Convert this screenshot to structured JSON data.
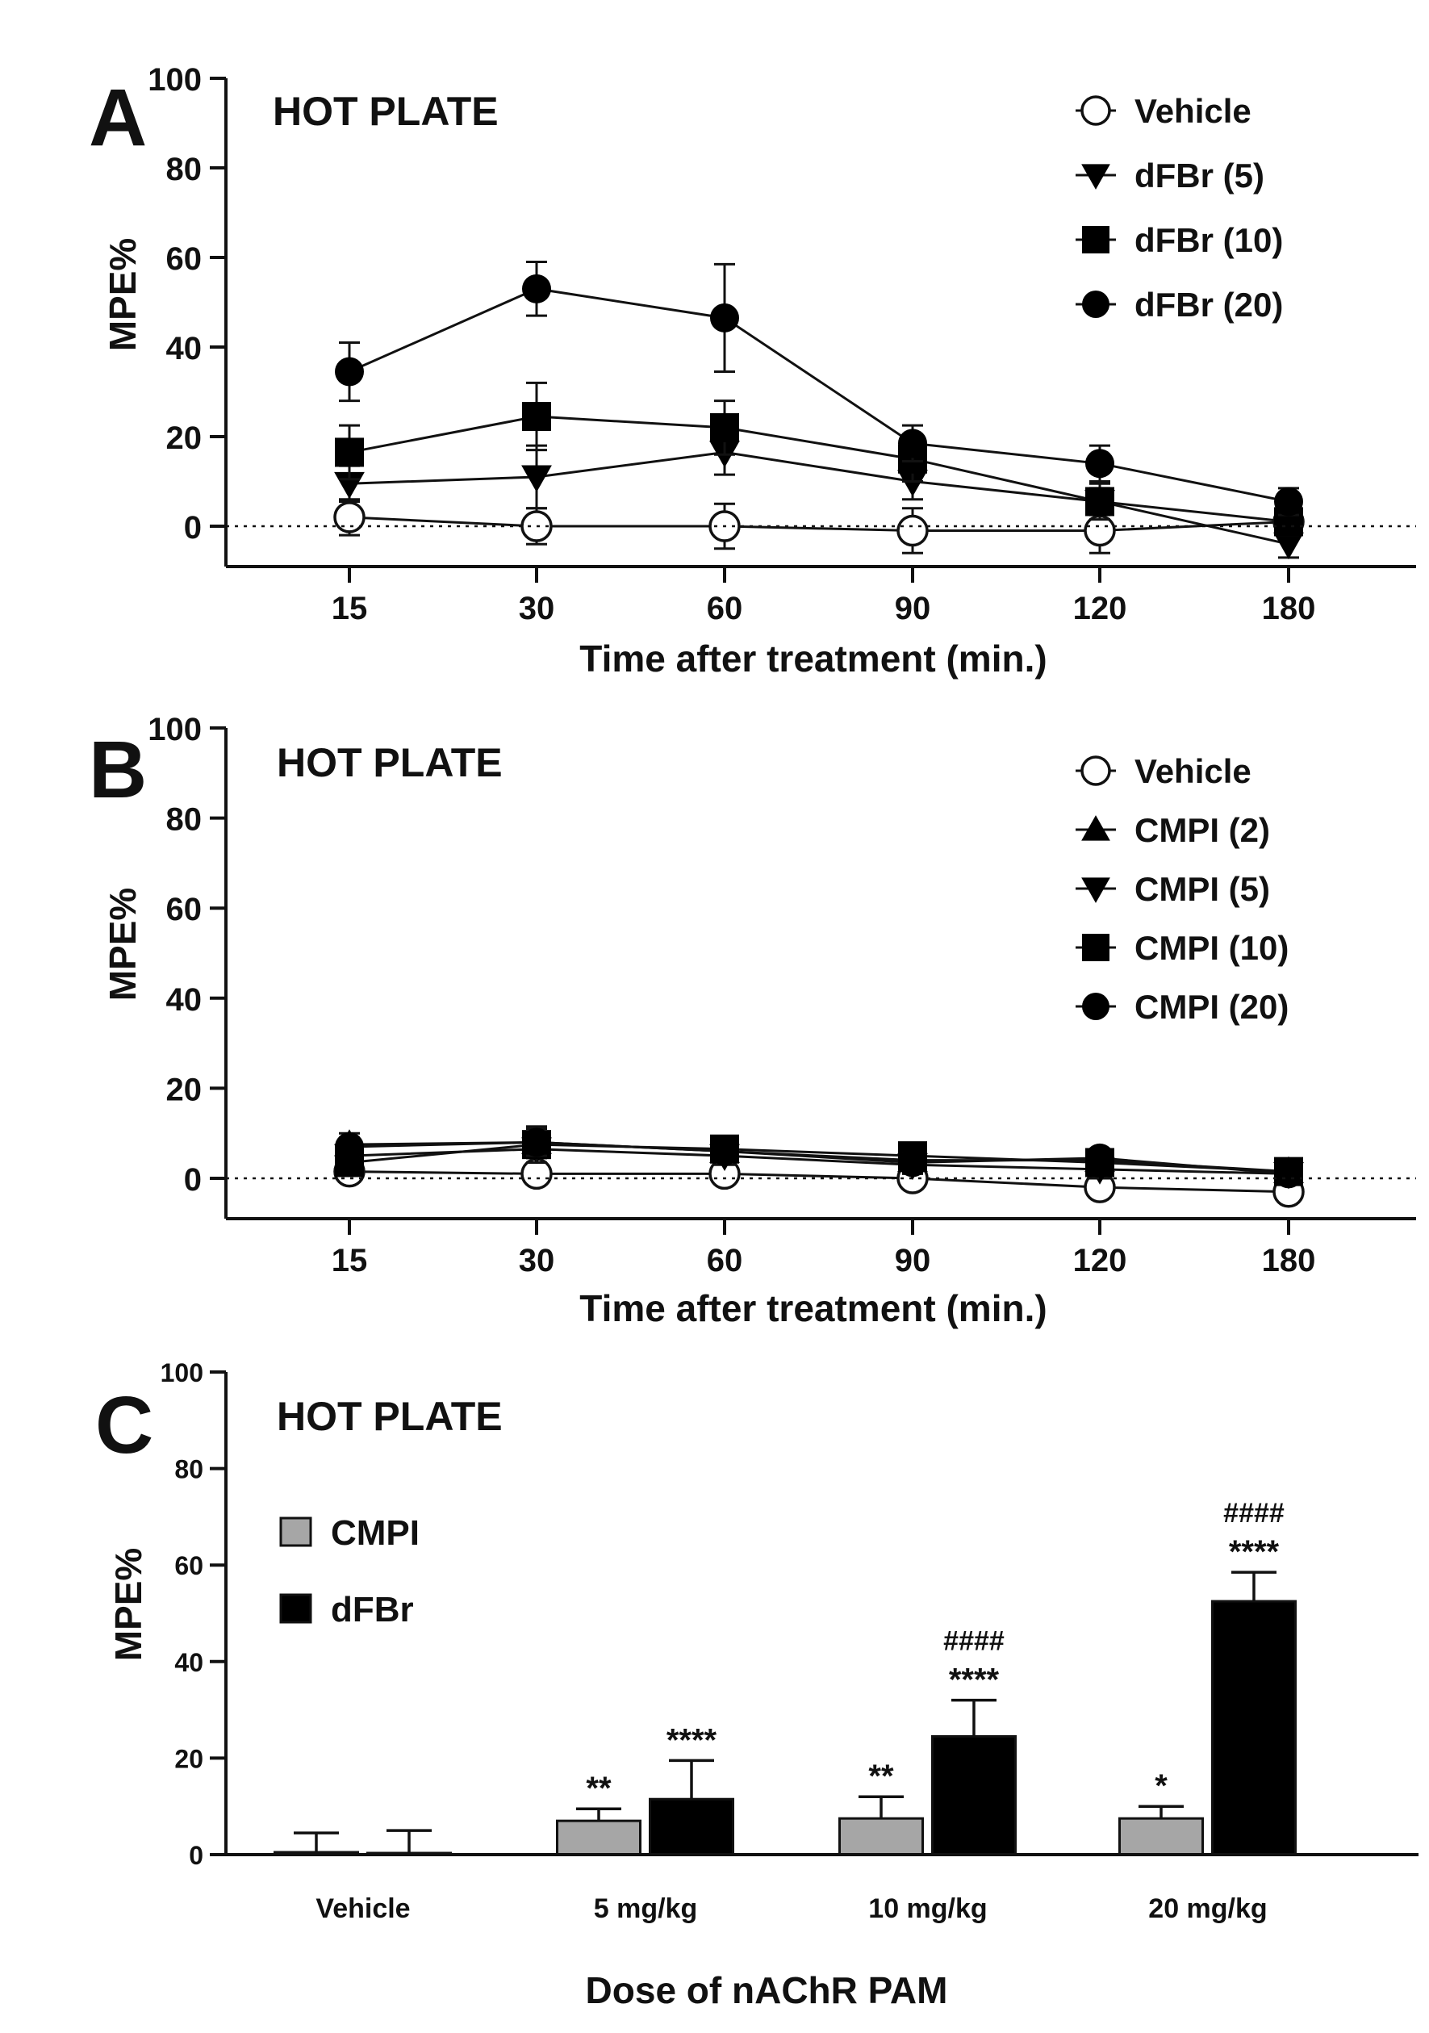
{
  "chart_data": [
    {
      "type": "line",
      "panel_letter": "A",
      "panel_title": "HOT PLATE",
      "ylabel": "MPE%",
      "xlabel": "Time after treatment (min.)",
      "categories": [
        "15",
        "30",
        "60",
        "90",
        "120",
        "180"
      ],
      "ylim": [
        -9,
        100
      ],
      "yticks": [
        "0",
        "20",
        "40",
        "60",
        "80",
        "100"
      ],
      "series": [
        {
          "name": "Vehicle",
          "marker": "circle-open",
          "values": [
            2,
            0,
            0,
            -1,
            -1,
            1
          ],
          "errors": [
            4,
            4,
            5,
            5,
            5,
            4
          ]
        },
        {
          "name": "dFBr (5)",
          "marker": "triangle-down",
          "values": [
            9.5,
            11,
            16.5,
            10,
            5.5,
            -4
          ],
          "errors": [
            4,
            7,
            5,
            4,
            4,
            3
          ]
        },
        {
          "name": "dFBr (10)",
          "marker": "square",
          "values": [
            16.5,
            24.5,
            22,
            15,
            5.5,
            1
          ],
          "errors": [
            6,
            7.5,
            6,
            5,
            3,
            3
          ]
        },
        {
          "name": "dFBr (20)",
          "marker": "circle-filled",
          "values": [
            34.5,
            53,
            46.5,
            18.5,
            14,
            5.5
          ],
          "errors": [
            6.5,
            6,
            12,
            4,
            4,
            3
          ]
        }
      ]
    },
    {
      "type": "line",
      "panel_letter": "B",
      "panel_title": "HOT PLATE",
      "ylabel": "MPE%",
      "xlabel": "Time after treatment (min.)",
      "categories": [
        "15",
        "30",
        "60",
        "90",
        "120",
        "180"
      ],
      "ylim": [
        -9,
        100
      ],
      "yticks": [
        "0",
        "20",
        "40",
        "60",
        "80",
        "100"
      ],
      "series": [
        {
          "name": "Vehicle",
          "marker": "circle-open",
          "values": [
            1.5,
            1,
            1,
            0,
            -2,
            -3
          ],
          "errors": [
            2,
            2,
            2,
            2,
            2,
            2
          ]
        },
        {
          "name": "CMPI (2)",
          "marker": "triangle-up",
          "values": [
            7.5,
            8,
            6,
            4,
            4,
            1.5
          ],
          "errors": [
            2.5,
            3.5,
            2,
            2,
            2,
            1.5
          ]
        },
        {
          "name": "CMPI (5)",
          "marker": "triangle-down",
          "values": [
            5,
            6.5,
            5,
            3,
            2,
            1
          ],
          "errors": [
            2,
            3,
            2,
            2,
            2,
            1.5
          ]
        },
        {
          "name": "CMPI (10)",
          "marker": "square",
          "values": [
            3.5,
            7.5,
            6.5,
            5,
            3.5,
            1.5
          ],
          "errors": [
            2,
            4,
            2,
            2,
            2,
            1.5
          ]
        },
        {
          "name": "CMPI (20)",
          "marker": "circle-filled",
          "values": [
            7,
            8,
            6,
            3.5,
            4.5,
            1
          ],
          "errors": [
            2,
            3,
            2,
            2,
            2,
            1.5
          ]
        }
      ]
    },
    {
      "type": "bar",
      "panel_letter": "C",
      "panel_title": "HOT PLATE",
      "ylabel": "MPE%",
      "xlabel": "Dose of nAChR PAM",
      "categories": [
        "Vehicle",
        "5 mg/kg",
        "10 mg/kg",
        "20 mg/kg"
      ],
      "ylim": [
        0,
        100
      ],
      "yticks": [
        "0",
        "20",
        "40",
        "60",
        "80",
        "100"
      ],
      "series": [
        {
          "name": "CMPI",
          "color": "#a6a6a6",
          "values": [
            0.5,
            7,
            7.5,
            7.5
          ],
          "errors": [
            4,
            2.5,
            4.5,
            2.5
          ],
          "annotations": [
            "",
            "**",
            "**",
            "*"
          ]
        },
        {
          "name": "dFBr",
          "color": "#000000",
          "values": [
            0,
            11.5,
            24.5,
            52.5
          ],
          "errors": [
            5,
            8,
            7.5,
            6
          ],
          "annotations": [
            "",
            "****",
            "****",
            "****"
          ],
          "annotations_hash": [
            "",
            "",
            "####",
            "####"
          ]
        }
      ]
    }
  ]
}
